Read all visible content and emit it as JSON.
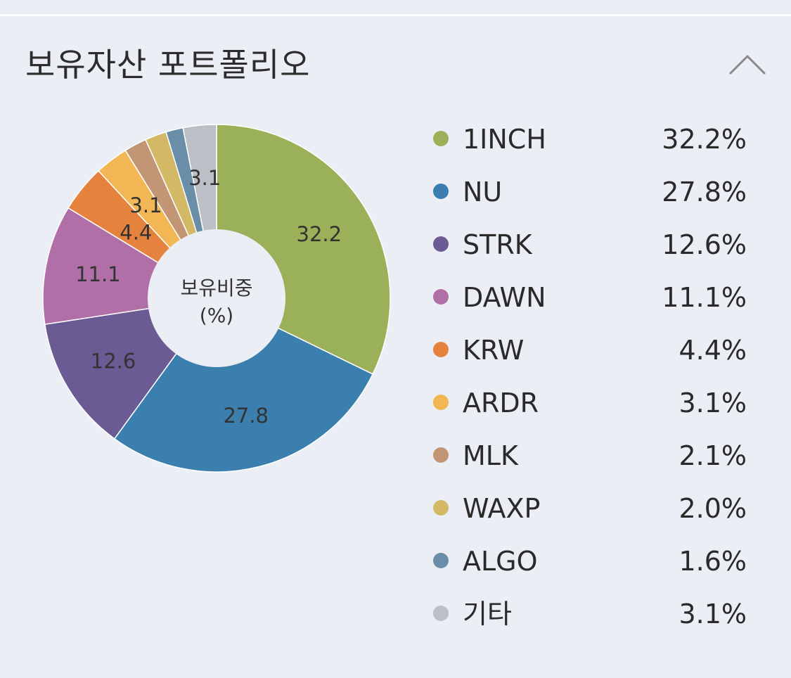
{
  "header": {
    "title": "보유자산 포트폴리오"
  },
  "chart_data": {
    "type": "pie",
    "center_label": [
      "보유비중",
      "(%)"
    ],
    "series": [
      {
        "name": "1INCH",
        "value": 32.2,
        "label": "32.2",
        "legend_value": "32.2%",
        "color": "#9bb159"
      },
      {
        "name": "NU",
        "value": 27.8,
        "label": "27.8",
        "legend_value": "27.8%",
        "color": "#3b7fae"
      },
      {
        "name": "STRK",
        "value": 12.6,
        "label": "12.6",
        "legend_value": "12.6%",
        "color": "#6a5b94"
      },
      {
        "name": "DAWN",
        "value": 11.1,
        "label": "11.1",
        "legend_value": "11.1%",
        "color": "#b06fa7"
      },
      {
        "name": "KRW",
        "value": 4.4,
        "label": "4.4",
        "legend_value": "4.4%",
        "color": "#e5833e"
      },
      {
        "name": "ARDR",
        "value": 3.1,
        "label": "3.1",
        "legend_value": "3.1%",
        "color": "#f2b654"
      },
      {
        "name": "MLK",
        "value": 2.1,
        "label": "",
        "legend_value": "2.1%",
        "color": "#c29574"
      },
      {
        "name": "WAXP",
        "value": 2.0,
        "label": "",
        "legend_value": "2.0%",
        "color": "#d3b866"
      },
      {
        "name": "ALGO",
        "value": 1.6,
        "label": "",
        "legend_value": "1.6%",
        "color": "#6a8ea8"
      },
      {
        "name": "기타",
        "value": 3.1,
        "label": "3.1",
        "legend_value": "3.1%",
        "color": "#bcbfc5"
      }
    ]
  },
  "icons": {
    "collapse": "chevron-up-icon"
  }
}
